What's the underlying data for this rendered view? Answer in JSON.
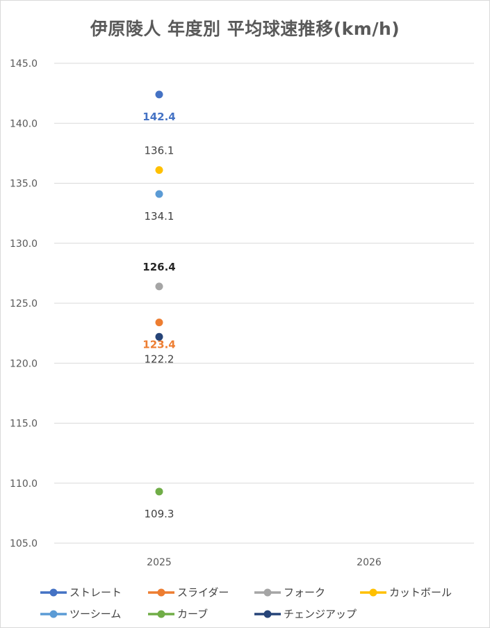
{
  "chart_data": {
    "type": "line",
    "title": "伊原陵人 年度別 平均球速推移(km/h)",
    "xlabel": "",
    "ylabel": "",
    "categories": [
      "2025",
      "2026"
    ],
    "ylim": [
      105.0,
      145.0
    ],
    "ytick_step": 5,
    "yticks": [
      "105.0",
      "110.0",
      "115.0",
      "120.0",
      "125.0",
      "130.0",
      "135.0",
      "140.0",
      "145.0"
    ],
    "grid": true,
    "legend_position": "bottom",
    "series": [
      {
        "name": "ストレート",
        "color": "#4472C4",
        "values": [
          142.4,
          null
        ],
        "labels": [
          "142.4",
          ""
        ],
        "label_pos": "below",
        "label_color": "#4472C4",
        "label_bold": true
      },
      {
        "name": "スライダー",
        "color": "#ED7D31",
        "values": [
          123.4,
          null
        ],
        "labels": [
          "123.4",
          ""
        ],
        "label_pos": "below",
        "label_color": "#ED7D31",
        "label_bold": true
      },
      {
        "name": "フォーク",
        "color": "#A5A5A5",
        "values": [
          126.4,
          null
        ],
        "labels": [
          "126.4",
          ""
        ],
        "label_pos": "above",
        "label_color": "#262626",
        "label_bold": true
      },
      {
        "name": "カットボール",
        "color": "#FFC000",
        "values": [
          136.1,
          null
        ],
        "labels": [
          "136.1",
          ""
        ],
        "label_pos": "above",
        "label_color": "#404040",
        "label_bold": false
      },
      {
        "name": "ツーシーム",
        "color": "#5B9BD5",
        "values": [
          134.1,
          null
        ],
        "labels": [
          "134.1",
          ""
        ],
        "label_pos": "below",
        "label_color": "#404040",
        "label_bold": false
      },
      {
        "name": "カーブ",
        "color": "#70AD47",
        "values": [
          109.3,
          null
        ],
        "labels": [
          "109.3",
          ""
        ],
        "label_pos": "below",
        "label_color": "#404040",
        "label_bold": false
      },
      {
        "name": "チェンジアップ",
        "color": "#264478",
        "values": [
          122.2,
          null
        ],
        "labels": [
          "122.2",
          ""
        ],
        "label_pos": "below",
        "label_color": "#404040",
        "label_bold": false
      }
    ]
  }
}
